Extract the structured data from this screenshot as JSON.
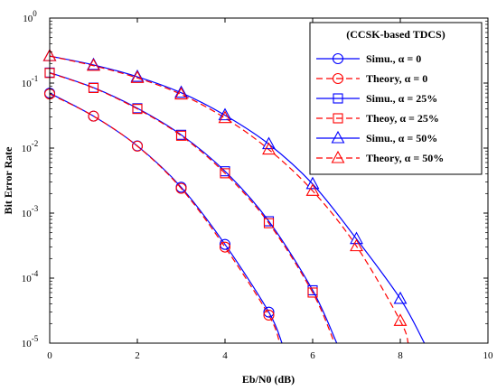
{
  "chart_data": {
    "type": "line",
    "xlabel": "Eb/N0 (dB)",
    "ylabel": "Bit Error Rate",
    "xlim": [
      0,
      10
    ],
    "ylim": [
      1e-05,
      1
    ],
    "yscale": "log",
    "grid": false,
    "legend_position": "top-right",
    "legend_title": "(CCSK-based TDCS)",
    "x_ticks": [
      {
        "value": 0,
        "label": "0"
      },
      {
        "value": 2,
        "label": "2"
      },
      {
        "value": 4,
        "label": "4"
      },
      {
        "value": 6,
        "label": "6"
      },
      {
        "value": 8,
        "label": "8"
      },
      {
        "value": 10,
        "label": "10"
      }
    ],
    "y_ticks": [
      {
        "value": 1,
        "base": "10",
        "exp": "0"
      },
      {
        "value": 0.1,
        "base": "10",
        "exp": "-1"
      },
      {
        "value": 0.01,
        "base": "10",
        "exp": "-2"
      },
      {
        "value": 0.001,
        "base": "10",
        "exp": "-3"
      },
      {
        "value": 0.0001,
        "base": "10",
        "exp": "-4"
      },
      {
        "value": 1e-05,
        "base": "10",
        "exp": "-5"
      }
    ],
    "series": [
      {
        "name": "Simu., α = 0",
        "color": "#0000ff",
        "dash": "solid",
        "marker": "circle",
        "marker_x": [
          0,
          1,
          2,
          3,
          4,
          5
        ],
        "marker_y": [
          0.07,
          0.031,
          0.0108,
          0.0025,
          0.00033,
          3e-05
        ],
        "curve": [
          [
            0,
            0.07
          ],
          [
            1,
            0.031
          ],
          [
            2,
            0.0108
          ],
          [
            3,
            0.0025
          ],
          [
            4,
            0.00033
          ],
          [
            5,
            3e-05
          ],
          [
            5.3,
            1e-05
          ]
        ]
      },
      {
        "name": "Theory, α = 0",
        "color": "#ff0000",
        "dash": "dashed",
        "marker": "circle",
        "marker_x": [
          0,
          1,
          2,
          3,
          4,
          5
        ],
        "marker_y": [
          0.068,
          0.031,
          0.0107,
          0.0024,
          0.0003,
          2.7e-05
        ],
        "curve": [
          [
            0,
            0.068
          ],
          [
            1,
            0.031
          ],
          [
            2,
            0.0107
          ],
          [
            3,
            0.0024
          ],
          [
            4,
            0.0003
          ],
          [
            5,
            2.7e-05
          ],
          [
            5.25,
            1e-05
          ]
        ]
      },
      {
        "name": "Simu., α = 25%",
        "color": "#0000ff",
        "dash": "solid",
        "marker": "square",
        "marker_x": [
          0,
          1,
          2,
          3,
          4,
          5,
          6
        ],
        "marker_y": [
          0.145,
          0.085,
          0.041,
          0.016,
          0.0044,
          0.00075,
          6.5e-05
        ],
        "curve": [
          [
            0,
            0.145
          ],
          [
            1,
            0.085
          ],
          [
            2,
            0.041
          ],
          [
            3,
            0.016
          ],
          [
            4,
            0.0044
          ],
          [
            5,
            0.00075
          ],
          [
            6,
            6.5e-05
          ],
          [
            6.55,
            1e-05
          ]
        ]
      },
      {
        "name": "Theoy, α = 25%",
        "color": "#ff0000",
        "dash": "dashed",
        "marker": "square",
        "marker_x": [
          0,
          1,
          2,
          3,
          4,
          5,
          6
        ],
        "marker_y": [
          0.143,
          0.084,
          0.04,
          0.0155,
          0.0041,
          0.0007,
          6e-05
        ],
        "curve": [
          [
            0,
            0.143
          ],
          [
            1,
            0.084
          ],
          [
            2,
            0.04
          ],
          [
            3,
            0.0155
          ],
          [
            4,
            0.0041
          ],
          [
            5,
            0.0007
          ],
          [
            6,
            6e-05
          ],
          [
            6.5,
            1e-05
          ]
        ]
      },
      {
        "name": "Simu., α = 50%",
        "color": "#0000ff",
        "dash": "solid",
        "marker": "triangle",
        "marker_x": [
          0,
          1,
          2,
          3,
          4,
          5,
          6,
          7,
          8
        ],
        "marker_y": [
          0.26,
          0.19,
          0.125,
          0.071,
          0.032,
          0.0115,
          0.0028,
          0.0004,
          4.8e-05
        ],
        "curve": [
          [
            0,
            0.26
          ],
          [
            1,
            0.19
          ],
          [
            2,
            0.125
          ],
          [
            3,
            0.071
          ],
          [
            4,
            0.032
          ],
          [
            5,
            0.0115
          ],
          [
            6,
            0.0028
          ],
          [
            7,
            0.0004
          ],
          [
            8,
            4.8e-05
          ],
          [
            8.55,
            1e-05
          ]
        ]
      },
      {
        "name": "Theory, α = 50%",
        "color": "#ff0000",
        "dash": "dashed",
        "marker": "triangle",
        "marker_x": [
          0,
          1,
          2,
          3,
          4,
          5,
          6,
          7,
          8
        ],
        "marker_y": [
          0.26,
          0.185,
          0.12,
          0.067,
          0.029,
          0.0095,
          0.0022,
          0.00031,
          2.2e-05
        ],
        "curve": [
          [
            0,
            0.26
          ],
          [
            1,
            0.185
          ],
          [
            2,
            0.12
          ],
          [
            3,
            0.067
          ],
          [
            4,
            0.029
          ],
          [
            5,
            0.0095
          ],
          [
            6,
            0.0022
          ],
          [
            7,
            0.00031
          ],
          [
            8,
            2.2e-05
          ],
          [
            8.18,
            1e-05
          ]
        ]
      }
    ]
  }
}
